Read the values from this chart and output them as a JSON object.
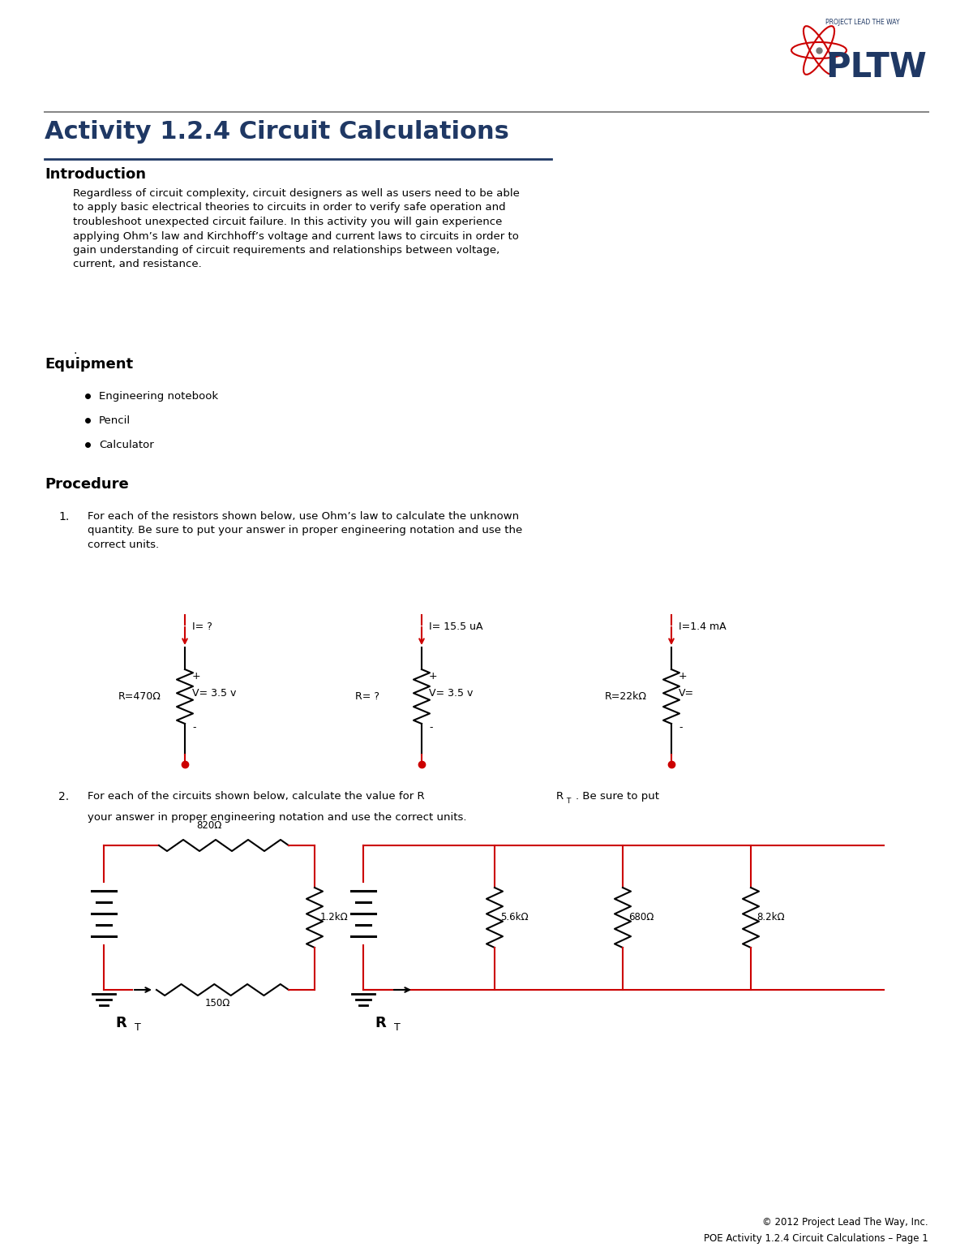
{
  "title": "Activity 1.2.4 Circuit Calculations",
  "title_color": "#1F3864",
  "background_color": "#ffffff",
  "intro_heading": "Introduction",
  "intro_text": "Regardless of circuit complexity, circuit designers as well as users need to be able\nto apply basic electrical theories to circuits in order to verify safe operation and\ntroubleshoot unexpected circuit failure. In this activity you will gain experience\napplying Ohm’s law and Kirchhoff’s voltage and current laws to circuits in order to\ngain understanding of circuit requirements and relationships between voltage,\ncurrent, and resistance.",
  "equipment_heading": "Equipment",
  "equipment_items": [
    "Engineering notebook",
    "Pencil",
    "Calculator"
  ],
  "procedure_heading": "Procedure",
  "proc1_text": "For each of the resistors shown below, use Ohm’s law to calculate the unknown\nquantity. Be sure to put your answer in proper engineering notation and use the\ncorrect units.",
  "proc2_line1a": "For each of the circuits shown below, calculate the value for R",
  "proc2_sub": "T",
  "proc2_line1b": ". Be sure to put",
  "proc2_line2": "your answer in proper engineering notation and use the correct units.",
  "footer1": "© 2012 Project Lead The Way, Inc.",
  "footer2": "POE Activity 1.2.4 Circuit Calculations – Page 1",
  "circuit_color": "#cc0000",
  "resistors": [
    {
      "label": "R=470Ω",
      "I": "I= ?",
      "V": "V= 3.5 v"
    },
    {
      "label": "R= ?",
      "I": "I= 15.5 uA",
      "V": "V= 3.5 v"
    },
    {
      "label": "R=22kΩ",
      "I": "I=1.4 mA",
      "V": "V="
    }
  ],
  "circuit2_r1": "820Ω",
  "circuit2_r2": "1.2kΩ",
  "circuit2_r3": "150Ω",
  "circuit3_r1": "5.6kΩ",
  "circuit3_r2": "680Ω",
  "circuit3_r3": "8.2kΩ"
}
